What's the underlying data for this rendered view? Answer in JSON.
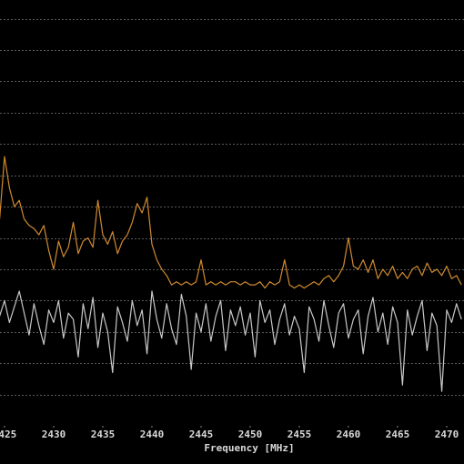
{
  "chart_data": {
    "type": "line",
    "xlabel": "Frequency [MHz]",
    "x": [
      2424.5,
      2425,
      2425.5,
      2426,
      2426.5,
      2427,
      2427.5,
      2428,
      2428.5,
      2429,
      2429.5,
      2430,
      2430.5,
      2431,
      2431.5,
      2432,
      2432.5,
      2433,
      2433.5,
      2434,
      2434.5,
      2435,
      2435.5,
      2436,
      2436.5,
      2437,
      2437.5,
      2438,
      2438.5,
      2439,
      2439.5,
      2440,
      2440.5,
      2441,
      2441.5,
      2442,
      2442.5,
      2443,
      2443.5,
      2444,
      2444.5,
      2445,
      2445.5,
      2446,
      2446.5,
      2447,
      2447.5,
      2448,
      2448.5,
      2449,
      2449.5,
      2450,
      2450.5,
      2451,
      2451.5,
      2452,
      2452.5,
      2453,
      2453.5,
      2454,
      2454.5,
      2455,
      2455.5,
      2456,
      2456.5,
      2457,
      2457.5,
      2458,
      2458.5,
      2459,
      2459.5,
      2460,
      2460.5,
      2461,
      2461.5,
      2462,
      2462.5,
      2463,
      2463.5,
      2464,
      2464.5,
      2465,
      2465.5,
      2466,
      2466.5,
      2467,
      2467.5,
      2468,
      2468.5,
      2469,
      2469.5,
      2470,
      2470.5,
      2471,
      2471.5
    ],
    "series": [
      {
        "color": "#d08a30",
        "values": [
          6.6,
          8.6,
          7.6,
          7.0,
          7.2,
          6.6,
          6.4,
          6.3,
          6.1,
          6.4,
          5.6,
          5.0,
          5.9,
          5.4,
          5.7,
          6.5,
          5.5,
          5.9,
          6.0,
          5.7,
          7.2,
          6.1,
          5.8,
          6.2,
          5.5,
          5.9,
          6.1,
          6.5,
          7.1,
          6.8,
          7.3,
          5.8,
          5.3,
          5.0,
          4.8,
          4.5,
          4.6,
          4.5,
          4.6,
          4.5,
          4.6,
          5.3,
          4.5,
          4.6,
          4.5,
          4.6,
          4.5,
          4.6,
          4.6,
          4.5,
          4.6,
          4.5,
          4.5,
          4.6,
          4.4,
          4.6,
          4.5,
          4.6,
          5.3,
          4.5,
          4.4,
          4.5,
          4.4,
          4.5,
          4.6,
          4.5,
          4.7,
          4.8,
          4.6,
          4.8,
          5.1,
          6.0,
          5.1,
          5.0,
          5.3,
          4.9,
          5.3,
          4.7,
          5.0,
          4.8,
          5.1,
          4.7,
          4.9,
          4.7,
          5.0,
          5.1,
          4.8,
          5.2,
          4.9,
          5.0,
          4.8,
          5.1,
          4.7,
          4.8,
          4.5
        ]
      },
      {
        "color": "#c8c8c8",
        "values": [
          3.5,
          4.0,
          3.3,
          3.8,
          4.3,
          3.6,
          2.9,
          3.9,
          3.2,
          2.6,
          3.7,
          3.3,
          4.0,
          2.8,
          3.6,
          3.4,
          2.2,
          3.9,
          3.1,
          4.1,
          2.5,
          3.6,
          3.0,
          1.7,
          3.8,
          3.3,
          2.7,
          4.0,
          3.2,
          3.7,
          2.3,
          4.3,
          3.4,
          2.8,
          3.9,
          3.1,
          2.6,
          4.2,
          3.5,
          1.8,
          3.6,
          3.0,
          3.9,
          2.7,
          3.5,
          4.0,
          2.4,
          3.7,
          3.2,
          3.8,
          2.9,
          3.6,
          2.2,
          4.0,
          3.3,
          3.7,
          2.6,
          3.4,
          3.9,
          2.9,
          3.5,
          3.1,
          1.7,
          3.8,
          3.4,
          2.7,
          4.0,
          3.2,
          2.5,
          3.6,
          3.9,
          2.8,
          3.4,
          3.7,
          2.3,
          3.5,
          4.1,
          3.0,
          3.6,
          2.6,
          3.8,
          3.3,
          1.3,
          3.7,
          2.9,
          3.5,
          4.0,
          2.4,
          3.6,
          3.2,
          1.1,
          3.7,
          3.3,
          3.9,
          3.4
        ]
      }
    ],
    "xlim": [
      2424.54,
      2471.76
    ],
    "xticks": [
      2425,
      2430,
      2435,
      2440,
      2445,
      2450,
      2455,
      2460,
      2465,
      2470
    ],
    "ylim": [
      0,
      13.6
    ],
    "yticks": [
      1,
      2,
      3,
      4,
      5,
      6,
      7,
      8,
      9,
      10,
      11,
      12,
      13
    ],
    "grid": true
  }
}
